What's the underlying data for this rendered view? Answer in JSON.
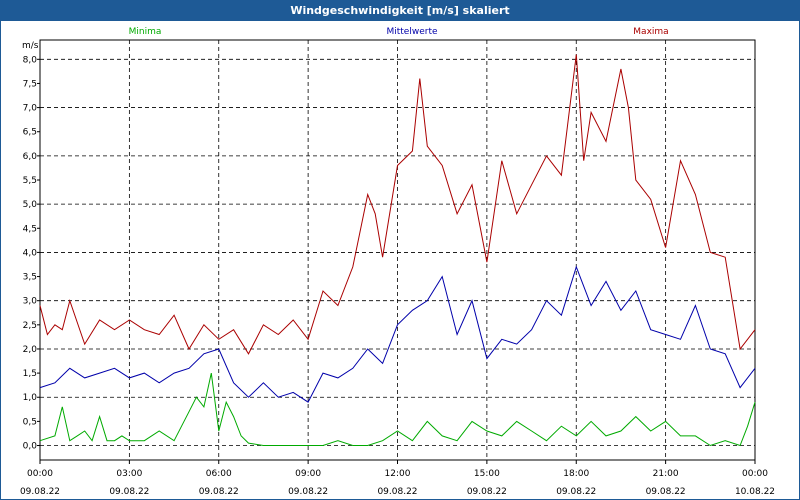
{
  "window": {
    "title": "Windgeschwindigkeit [m/s] skaliert"
  },
  "colors": {
    "min": "#00aa00",
    "mean": "#0000aa",
    "max": "#aa0000",
    "titlebar": "#1e5a96"
  },
  "chart_data": {
    "type": "line",
    "title": "Windgeschwindigkeit [m/s] skaliert",
    "ylabel": "m/s",
    "xlabel": "",
    "ylim": [
      -0.3,
      8.4
    ],
    "y_ticks": [
      "0,0",
      "0,5",
      "1,0",
      "1,5",
      "2,0",
      "2,5",
      "3,0",
      "3,5",
      "4,0",
      "4,5",
      "5,0",
      "5,5",
      "6,0",
      "6,5",
      "7,0",
      "7,5",
      "8,0"
    ],
    "x_ticks": [
      {
        "time": "00:00",
        "date": "09.08.22"
      },
      {
        "time": "03:00",
        "date": "09.08.22"
      },
      {
        "time": "06:00",
        "date": "09.08.22"
      },
      {
        "time": "09:00",
        "date": "09.08.22"
      },
      {
        "time": "12:00",
        "date": "09.08.22"
      },
      {
        "time": "15:00",
        "date": "09.08.22"
      },
      {
        "time": "18:00",
        "date": "09.08.22"
      },
      {
        "time": "21:00",
        "date": "09.08.22"
      },
      {
        "time": "00:00",
        "date": "10.08.22"
      }
    ],
    "x_unit": "hours since 09.08.22 00:00",
    "grid": true,
    "legend_position": "top",
    "series": [
      {
        "name": "Minima",
        "color": "#00aa00",
        "x": [
          0,
          0.5,
          0.75,
          1,
          1.25,
          1.5,
          1.75,
          2,
          2.25,
          2.5,
          2.75,
          3,
          3.5,
          4,
          4.5,
          5,
          5.25,
          5.5,
          5.75,
          6,
          6.25,
          6.5,
          6.75,
          7,
          7.5,
          8,
          8.5,
          9,
          9.5,
          10,
          10.5,
          11,
          11.5,
          12,
          12.5,
          13,
          13.5,
          14,
          14.5,
          15,
          15.5,
          16,
          16.5,
          17,
          17.5,
          18,
          18.5,
          19,
          19.5,
          20,
          20.5,
          21,
          21.5,
          22,
          22.5,
          23,
          23.5,
          23.75,
          24
        ],
        "values": [
          0.1,
          0.2,
          0.8,
          0.1,
          0.2,
          0.3,
          0.1,
          0.6,
          0.1,
          0.1,
          0.2,
          0.1,
          0.1,
          0.3,
          0.1,
          0.7,
          1.0,
          0.8,
          1.5,
          0.3,
          0.9,
          0.6,
          0.2,
          0.05,
          0.0,
          0.0,
          0.0,
          0.0,
          0.0,
          0.1,
          0.0,
          0.0,
          0.1,
          0.3,
          0.1,
          0.5,
          0.2,
          0.1,
          0.5,
          0.3,
          0.2,
          0.5,
          0.3,
          0.1,
          0.4,
          0.2,
          0.5,
          0.2,
          0.3,
          0.6,
          0.3,
          0.5,
          0.2,
          0.2,
          0.0,
          0.1,
          0.0,
          0.4,
          0.9
        ]
      },
      {
        "name": "Mittelwerte",
        "color": "#0000aa",
        "x": [
          0,
          0.5,
          1,
          1.5,
          2,
          2.5,
          3,
          3.5,
          4,
          4.5,
          5,
          5.5,
          6,
          6.5,
          7,
          7.5,
          8,
          8.5,
          9,
          9.5,
          10,
          10.5,
          11,
          11.5,
          12,
          12.5,
          13,
          13.5,
          14,
          14.5,
          15,
          15.5,
          16,
          16.5,
          17,
          17.5,
          18,
          18.5,
          19,
          19.5,
          20,
          20.5,
          21,
          21.5,
          22,
          22.5,
          23,
          23.5,
          24
        ],
        "values": [
          1.2,
          1.3,
          1.6,
          1.4,
          1.5,
          1.6,
          1.4,
          1.5,
          1.3,
          1.5,
          1.6,
          1.9,
          2.0,
          1.3,
          1.0,
          1.3,
          1.0,
          1.1,
          0.9,
          1.5,
          1.4,
          1.6,
          2.0,
          1.7,
          2.5,
          2.8,
          3.0,
          3.5,
          2.3,
          3.0,
          1.8,
          2.2,
          2.1,
          2.4,
          3.0,
          2.7,
          3.7,
          2.9,
          3.4,
          2.8,
          3.2,
          2.4,
          2.3,
          2.2,
          2.9,
          2.0,
          1.9,
          1.2,
          1.6
        ]
      },
      {
        "name": "Maxima",
        "color": "#aa0000",
        "x": [
          0,
          0.25,
          0.5,
          0.75,
          1,
          1.5,
          2,
          2.5,
          3,
          3.5,
          4,
          4.5,
          5,
          5.5,
          6,
          6.5,
          7,
          7.5,
          8,
          8.5,
          9,
          9.5,
          10,
          10.5,
          11,
          11.25,
          11.5,
          12,
          12.5,
          12.75,
          13,
          13.5,
          14,
          14.5,
          15,
          15.5,
          16,
          16.5,
          17,
          17.5,
          18,
          18.25,
          18.5,
          19,
          19.5,
          19.75,
          20,
          20.5,
          21,
          21.5,
          22,
          22.5,
          23,
          23.5,
          24
        ],
        "values": [
          2.9,
          2.3,
          2.5,
          2.4,
          3.0,
          2.1,
          2.6,
          2.4,
          2.6,
          2.4,
          2.3,
          2.7,
          2.0,
          2.5,
          2.2,
          2.4,
          1.9,
          2.5,
          2.3,
          2.6,
          2.2,
          3.2,
          2.9,
          3.7,
          5.2,
          4.8,
          3.9,
          5.8,
          6.1,
          7.6,
          6.2,
          5.8,
          4.8,
          5.4,
          3.8,
          5.9,
          4.8,
          5.4,
          6.0,
          5.6,
          8.1,
          5.9,
          6.9,
          6.3,
          7.8,
          7.0,
          5.5,
          5.1,
          4.1,
          5.9,
          5.2,
          4.0,
          3.9,
          2.0,
          2.4
        ]
      }
    ]
  }
}
